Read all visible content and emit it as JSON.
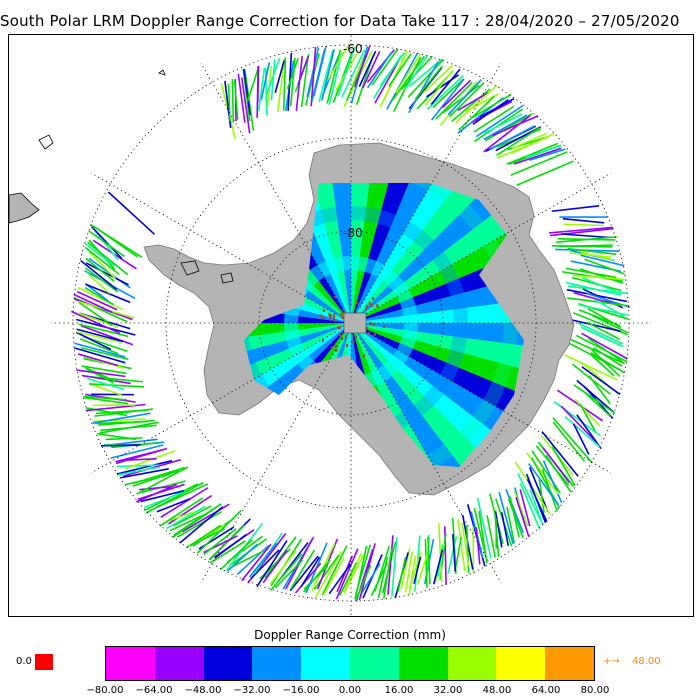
{
  "title": "South Polar LRM Doppler Range Correction for Data Take 117 : 28/04/2020 – 27/05/2020",
  "map": {
    "lat_labels": [
      "-60",
      "-80"
    ],
    "colors": {
      "land": "#b4b4b4",
      "coast": "#000000",
      "graticule": "#000000"
    }
  },
  "legend": {
    "title": "Doppler Range Correction (mm)",
    "ticks": [
      "−80.00",
      "−64.00",
      "−48.00",
      "−32.00",
      "−16.00",
      "0.00",
      "16.00",
      "32.00",
      "48.00",
      "64.00",
      "80.00"
    ],
    "colors": [
      "#ff00ff",
      "#9a00ff",
      "#0000dd",
      "#0090ff",
      "#00ffff",
      "#00ff99",
      "#00e000",
      "#99ff00",
      "#ffff00",
      "#ff9900"
    ],
    "below_value": "0.0",
    "below_color": "#ff0000",
    "above_arrow": "+→",
    "above_value": "48.00",
    "above_color": "#ff8800"
  }
}
